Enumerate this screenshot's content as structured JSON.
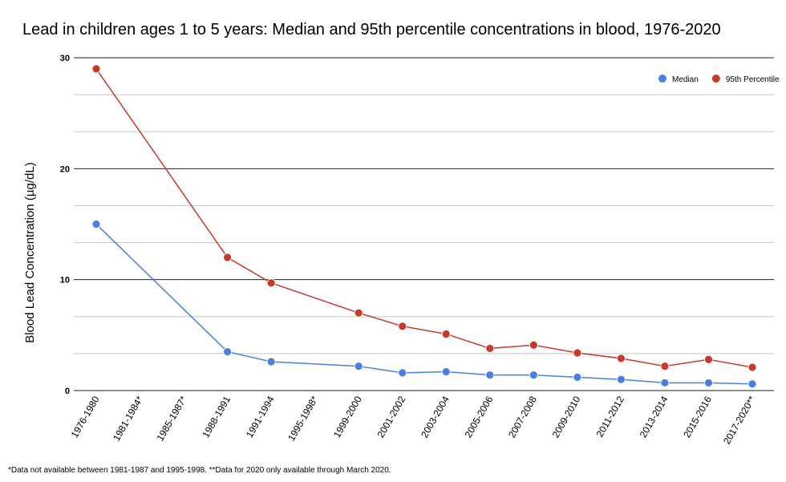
{
  "chart_data": {
    "type": "line",
    "title": "Lead in children ages 1 to 5 years: Median and 95th percentile concentrations in blood, 1976-2020",
    "xlabel": "",
    "ylabel": "Blood Lead Concentration (µg/dL)",
    "footnote": "*Data not available between 1981-1987 and 1995-1998. **Data for 2020 only available through March 2020.",
    "categories": [
      "1976-1980",
      "1981-1984*",
      "1985-1987*",
      "1988-1991",
      "1991-1994",
      "1995-1998*",
      "1999-2000",
      "2001-2002",
      "2003-2004",
      "2005-2006",
      "2007-2008",
      "2009-2010",
      "2011-2012",
      "2013-2014",
      "2015-2016",
      "2017-2020**"
    ],
    "yticks": [
      "0",
      "10",
      "20",
      "30"
    ],
    "ylim": [
      0,
      30
    ],
    "grid": true,
    "legend_position": "top-right",
    "series": [
      {
        "name": "Median",
        "color": "#4a7fe0",
        "values": [
          15,
          null,
          null,
          3.5,
          2.6,
          null,
          2.2,
          1.6,
          1.7,
          1.4,
          1.4,
          1.2,
          1.0,
          0.7,
          0.7,
          0.6
        ]
      },
      {
        "name": "95th Percentile",
        "color": "#c6392b",
        "values": [
          29,
          null,
          null,
          12.0,
          9.7,
          null,
          7.0,
          5.8,
          5.1,
          3.8,
          4.1,
          3.4,
          2.9,
          2.2,
          2.8,
          2.1
        ]
      }
    ]
  }
}
